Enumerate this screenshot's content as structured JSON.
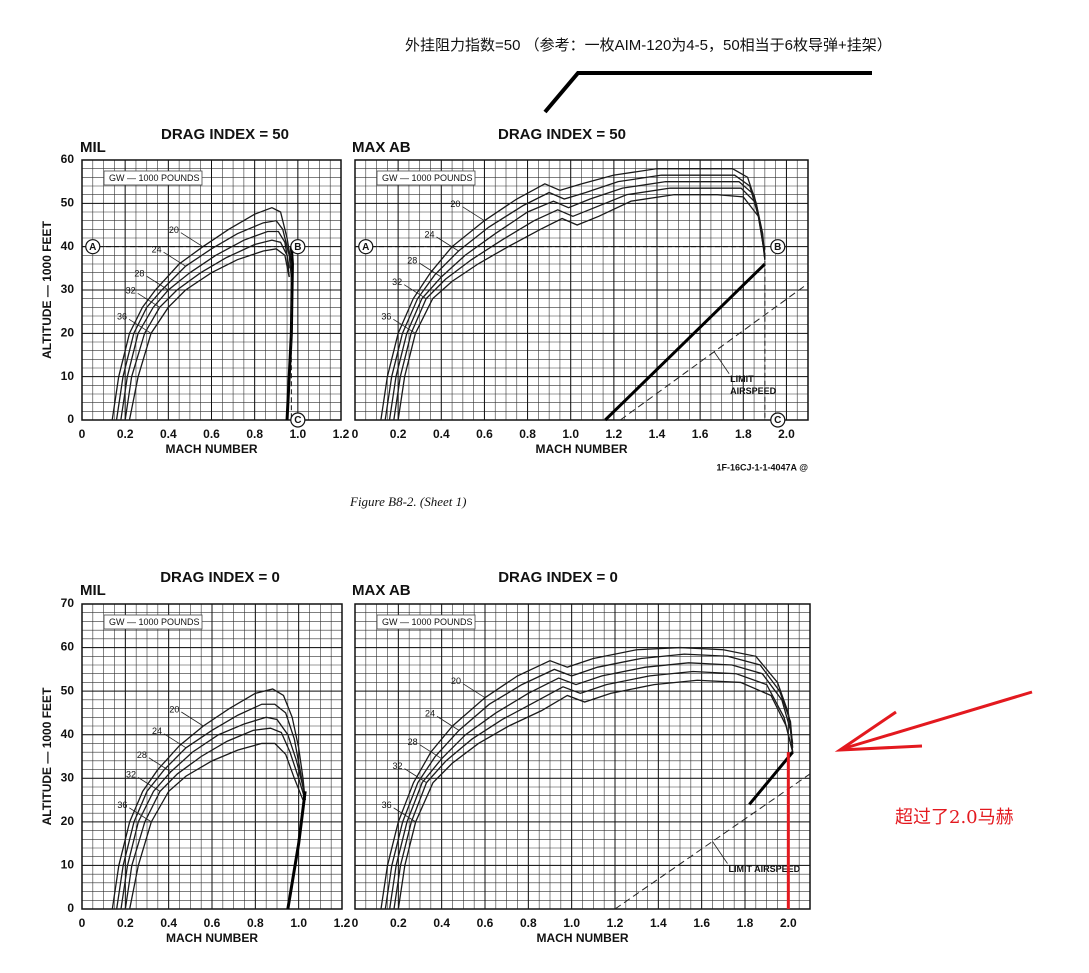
{
  "annotation": "外挂阻力指数=50 （参考：一枚AIM-120为4-5，50相当于6枚导弹+挂架）",
  "figure_code": "1F-16CJ-1-1-4047A @",
  "figure_caption": "Figure B8-2.  (Sheet 1)",
  "red_note": "超过了2.0马赫",
  "chart_data": [
    {
      "type": "line",
      "title": "DRAG INDEX = 50",
      "subtitle": "MIL",
      "xlabel": "MACH NUMBER",
      "ylabel": "ALTITUDE — 1000 FEET",
      "gw_label": "GW — 1000 POUNDS",
      "xlim": [
        0,
        1.2
      ],
      "ylim": [
        0,
        60
      ],
      "xticks": [
        0,
        0.2,
        0.4,
        0.6,
        0.8,
        {
          "value": 1,
          "label": "1.0"
        },
        1.2
      ],
      "yticks": [
        0,
        10,
        20,
        30,
        40,
        50,
        60
      ],
      "yticklabels": true,
      "grid": true,
      "color": "#1a1a1a",
      "series": [
        {
          "name": "20",
          "x": [
            0.14,
            0.17,
            0.22,
            0.28,
            0.34,
            0.45,
            0.56,
            0.68,
            0.8,
            0.88,
            0.92,
            0.95,
            0.97,
            0.97
          ],
          "values": [
            0,
            10,
            20,
            26,
            30,
            36,
            40,
            44,
            47.5,
            49,
            48,
            42,
            36,
            32
          ]
        },
        {
          "name": "24",
          "x": [
            0.16,
            0.19,
            0.24,
            0.3,
            0.37,
            0.48,
            0.6,
            0.72,
            0.84,
            0.9,
            0.93,
            0.96,
            0.97
          ],
          "values": [
            0,
            10,
            20,
            26,
            30,
            35.5,
            39.5,
            43,
            45.5,
            46,
            44,
            38,
            33
          ]
        },
        {
          "name": "28",
          "x": [
            0.18,
            0.21,
            0.26,
            0.33,
            0.4,
            0.5,
            0.62,
            0.75,
            0.86,
            0.91,
            0.94,
            0.96
          ],
          "values": [
            0,
            10,
            20,
            26,
            30,
            34,
            38,
            41.5,
            43.5,
            43.5,
            41,
            35
          ]
        },
        {
          "name": "32",
          "x": [
            0.2,
            0.23,
            0.29,
            0.36,
            0.44,
            0.55,
            0.67,
            0.8,
            0.88,
            0.92,
            0.95,
            0.96
          ],
          "values": [
            0,
            10,
            20,
            26,
            30,
            34,
            37.5,
            40.5,
            41.5,
            41,
            38,
            33
          ]
        },
        {
          "name": "36",
          "x": [
            0.22,
            0.26,
            0.32,
            0.4,
            0.48,
            0.6,
            0.72,
            0.84,
            0.9,
            0.94,
            0.96
          ],
          "values": [
            0,
            10,
            20,
            26,
            30,
            34,
            37,
            39,
            39.5,
            38,
            33
          ]
        }
      ],
      "envelope": {
        "x": [
          0.97,
          0.975,
          0.97,
          0.95
        ],
        "values": [
          40,
          36,
          20,
          0
        ]
      },
      "reference": {
        "x": [
          0,
          0.97,
          0.97
        ],
        "values": [
          40,
          40,
          0
        ]
      },
      "markers": [
        {
          "label": "A",
          "x": 0.05,
          "y": 40
        },
        {
          "label": "B",
          "x": 1.0,
          "y": 40
        },
        {
          "label": "C",
          "x": 1.0,
          "y": 0
        }
      ]
    },
    {
      "type": "line",
      "title": "DRAG INDEX = 50",
      "subtitle": "MAX AB",
      "xlabel": "MACH NUMBER",
      "gw_label": "GW — 1000 POUNDS",
      "xlim": [
        0,
        2.1
      ],
      "ylim": [
        0,
        60
      ],
      "xticks": [
        0,
        0.2,
        0.4,
        0.6,
        0.8,
        {
          "value": 1,
          "label": "1.0"
        },
        1.2,
        1.4,
        1.6,
        1.8,
        {
          "value": 2,
          "label": "2.0"
        }
      ],
      "yticks": [
        0,
        10,
        20,
        30,
        40,
        50,
        60
      ],
      "yticklabels": false,
      "grid": true,
      "color": "#1a1a1a",
      "series": [
        {
          "name": "20",
          "x": [
            0.12,
            0.15,
            0.2,
            0.27,
            0.35,
            0.45,
            0.6,
            0.75,
            0.88,
            0.95,
            1.05,
            1.2,
            1.4,
            1.6,
            1.75,
            1.82,
            1.86,
            1.89,
            1.9
          ],
          "values": [
            0,
            10,
            20,
            28,
            34,
            40,
            46,
            51,
            54.5,
            53,
            54.5,
            56.5,
            58,
            58,
            58,
            56,
            50,
            42,
            37
          ]
        },
        {
          "name": "24",
          "x": [
            0.14,
            0.17,
            0.22,
            0.29,
            0.37,
            0.48,
            0.62,
            0.78,
            0.9,
            0.97,
            1.07,
            1.22,
            1.42,
            1.62,
            1.76,
            1.83,
            1.87,
            1.9
          ],
          "values": [
            0,
            10,
            20,
            28,
            33.5,
            39,
            44.5,
            49.5,
            52.5,
            51,
            52.5,
            55,
            56.5,
            56.5,
            56.5,
            54,
            47,
            38
          ]
        },
        {
          "name": "28",
          "x": [
            0.16,
            0.19,
            0.24,
            0.31,
            0.4,
            0.51,
            0.65,
            0.8,
            0.92,
            0.99,
            1.09,
            1.24,
            1.44,
            1.64,
            1.78,
            1.85,
            1.88,
            1.9
          ],
          "values": [
            0,
            10,
            20,
            28,
            33,
            38,
            43,
            48,
            50.5,
            49,
            51,
            53.5,
            55,
            55,
            55,
            52,
            45,
            37
          ]
        },
        {
          "name": "32",
          "x": [
            0.18,
            0.21,
            0.26,
            0.33,
            0.42,
            0.54,
            0.68,
            0.83,
            0.94,
            1.01,
            1.11,
            1.26,
            1.46,
            1.66,
            1.79,
            1.86,
            1.89,
            1.9
          ],
          "values": [
            0,
            10,
            20,
            28,
            32.5,
            37,
            41.5,
            46,
            48.5,
            47,
            49,
            52,
            53.5,
            53.5,
            53.5,
            50,
            43,
            37
          ]
        },
        {
          "name": "36",
          "x": [
            0.2,
            0.23,
            0.28,
            0.36,
            0.45,
            0.57,
            0.71,
            0.86,
            0.96,
            1.03,
            1.13,
            1.28,
            1.48,
            1.68,
            1.8,
            1.87,
            1.9
          ],
          "values": [
            0,
            10,
            20,
            28,
            32,
            36,
            40,
            44,
            46.5,
            45,
            47,
            50.5,
            52,
            52,
            51.5,
            47,
            38
          ]
        }
      ],
      "envelope": {
        "x": [
          1.16,
          1.9
        ],
        "values": [
          0,
          36
        ]
      },
      "limit": {
        "label": [
          "LIMIT",
          "AIRSPEED"
        ],
        "x": [
          1.23,
          2.1
        ],
        "values": [
          0,
          31.5
        ]
      },
      "reference": {
        "x": [
          0,
          1.9,
          1.9
        ],
        "values": [
          40,
          40,
          0
        ]
      },
      "markers": [
        {
          "label": "A",
          "x": 0.05,
          "y": 40
        },
        {
          "label": "B",
          "x": 1.96,
          "y": 40
        },
        {
          "label": "C",
          "x": 1.96,
          "y": 0
        }
      ]
    },
    {
      "type": "line",
      "title": "DRAG INDEX = 0",
      "subtitle": "MIL",
      "xlabel": "MACH NUMBER",
      "ylabel": "ALTITUDE — 1000 FEET",
      "gw_label": "GW — 1000 POUNDS",
      "xlim": [
        0,
        1.2
      ],
      "ylim": [
        0,
        70
      ],
      "xticks": [
        0,
        0.2,
        0.4,
        0.6,
        0.8,
        {
          "value": 1,
          "label": "1.0"
        },
        1.2
      ],
      "yticks": [
        0,
        10,
        20,
        30,
        40,
        50,
        60,
        70
      ],
      "yticklabels": true,
      "grid": true,
      "color": "#1a1a1a",
      "series": [
        {
          "name": "20",
          "x": [
            0.14,
            0.17,
            0.22,
            0.28,
            0.35,
            0.45,
            0.56,
            0.68,
            0.8,
            0.88,
            0.93,
            0.97,
            1.0,
            1.02,
            1.03
          ],
          "values": [
            0,
            10,
            20,
            27,
            32,
            37.5,
            42,
            46,
            49.5,
            50.5,
            49,
            44,
            37,
            30,
            25
          ]
        },
        {
          "name": "24",
          "x": [
            0.16,
            0.19,
            0.24,
            0.3,
            0.38,
            0.48,
            0.6,
            0.72,
            0.83,
            0.89,
            0.94,
            0.98,
            1.01,
            1.03
          ],
          "values": [
            0,
            10,
            20,
            27,
            32,
            37,
            41,
            44.5,
            47,
            47,
            45,
            39,
            31,
            25
          ]
        },
        {
          "name": "28",
          "x": [
            0.18,
            0.21,
            0.26,
            0.33,
            0.41,
            0.51,
            0.63,
            0.75,
            0.85,
            0.9,
            0.95,
            0.99,
            1.02,
            1.03
          ],
          "values": [
            0,
            10,
            20,
            27,
            31.5,
            36,
            40,
            42.5,
            44,
            43.5,
            40,
            34,
            28,
            25
          ]
        },
        {
          "name": "32",
          "x": [
            0.2,
            0.23,
            0.29,
            0.36,
            0.44,
            0.55,
            0.67,
            0.79,
            0.87,
            0.92,
            0.96,
            1.0,
            1.03
          ],
          "values": [
            0,
            10,
            20,
            27,
            31,
            35,
            38.5,
            41,
            41.5,
            40.5,
            36,
            30,
            25
          ]
        },
        {
          "name": "36",
          "x": [
            0.22,
            0.26,
            0.32,
            0.4,
            0.48,
            0.6,
            0.72,
            0.83,
            0.89,
            0.94,
            0.98,
            1.02
          ],
          "values": [
            0,
            10,
            20,
            27,
            30.5,
            34,
            36.5,
            38,
            38,
            35.5,
            30,
            25
          ]
        }
      ],
      "envelope": {
        "x": [
          0.95,
          1.0,
          1.03
        ],
        "values": [
          0,
          15,
          27
        ]
      }
    },
    {
      "type": "line",
      "title": "DRAG INDEX = 0",
      "subtitle": "MAX AB",
      "xlabel": "MACH NUMBER",
      "gw_label": "GW — 1000 POUNDS",
      "xlim": [
        0,
        2.1
      ],
      "ylim": [
        0,
        70
      ],
      "xticks": [
        0,
        0.2,
        0.4,
        0.6,
        0.8,
        {
          "value": 1,
          "label": "1.0"
        },
        1.2,
        1.4,
        1.6,
        1.8,
        {
          "value": 2,
          "label": "2.0"
        }
      ],
      "yticks": [
        0,
        10,
        20,
        30,
        40,
        50,
        60,
        70
      ],
      "yticklabels": false,
      "grid": true,
      "color": "#1a1a1a",
      "series": [
        {
          "name": "20",
          "x": [
            0.12,
            0.15,
            0.2,
            0.27,
            0.35,
            0.45,
            0.6,
            0.75,
            0.9,
            0.98,
            1.1,
            1.3,
            1.5,
            1.7,
            1.85,
            1.95,
            2.0,
            2.02
          ],
          "values": [
            0,
            10,
            20,
            29,
            36,
            42,
            48.5,
            53.5,
            57,
            55.5,
            57.5,
            59.5,
            60,
            59.5,
            58,
            52,
            45,
            38
          ]
        },
        {
          "name": "24",
          "x": [
            0.14,
            0.17,
            0.22,
            0.29,
            0.37,
            0.48,
            0.62,
            0.77,
            0.92,
            1.0,
            1.12,
            1.32,
            1.52,
            1.72,
            1.87,
            1.96,
            2.01,
            2.02
          ],
          "values": [
            0,
            10,
            20,
            29,
            35,
            41,
            47,
            51.5,
            55,
            53.5,
            55.5,
            57.5,
            58.5,
            58,
            56,
            50,
            43,
            37
          ]
        },
        {
          "name": "28",
          "x": [
            0.16,
            0.19,
            0.24,
            0.31,
            0.4,
            0.51,
            0.65,
            0.8,
            0.94,
            1.02,
            1.14,
            1.34,
            1.54,
            1.74,
            1.88,
            1.97,
            2.01,
            2.02
          ],
          "values": [
            0,
            10,
            20,
            29,
            34.5,
            40,
            45,
            49.5,
            53,
            51.5,
            53.5,
            55.5,
            56.5,
            56,
            54,
            48,
            41,
            36
          ]
        },
        {
          "name": "32",
          "x": [
            0.18,
            0.21,
            0.26,
            0.33,
            0.42,
            0.54,
            0.68,
            0.83,
            0.96,
            1.04,
            1.16,
            1.36,
            1.56,
            1.76,
            1.9,
            1.98,
            2.02
          ],
          "values": [
            0,
            10,
            20,
            29,
            34,
            39,
            43.5,
            47.5,
            51,
            49.5,
            51.5,
            53.5,
            54.5,
            54,
            51.5,
            44,
            36
          ]
        },
        {
          "name": "36",
          "x": [
            0.2,
            0.23,
            0.28,
            0.36,
            0.45,
            0.57,
            0.71,
            0.86,
            0.98,
            1.06,
            1.18,
            1.38,
            1.58,
            1.78,
            1.92,
            1.99,
            2.02
          ],
          "values": [
            0,
            10,
            20,
            29,
            33.5,
            38,
            42,
            45.5,
            49,
            47.5,
            49.5,
            51.5,
            52.5,
            52,
            49,
            42,
            36
          ]
        }
      ],
      "envelope": {
        "x": [
          1.82,
          1.92,
          2.02
        ],
        "values": [
          24,
          30,
          36
        ]
      },
      "limit": {
        "label": "LIMIT AIRSPEED",
        "x": [
          1.2,
          2.1
        ],
        "values": [
          0,
          31
        ]
      },
      "highlight": {
        "color": "#e3191f",
        "x": [
          2,
          2
        ],
        "values": [
          0,
          36
        ]
      }
    }
  ]
}
